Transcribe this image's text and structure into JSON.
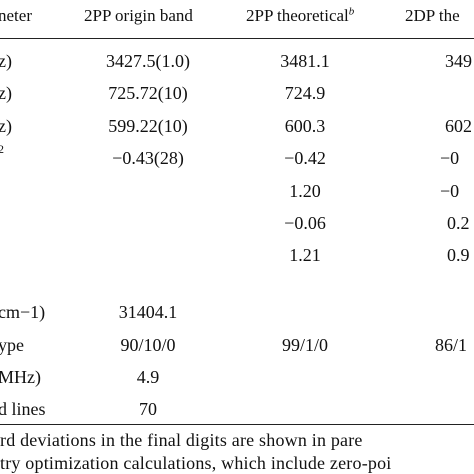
{
  "header": {
    "parameter_fragment": "neter",
    "col1": "2PP origin band",
    "col2": "2PP theoretical",
    "col2_sup": "b",
    "col3_fragment": "2DP the"
  },
  "rows": [
    {
      "label": "z)",
      "c1": "3427.5(1.0)",
      "c2": "3481.1",
      "c3": "349"
    },
    {
      "label": "z)",
      "c1": "725.72(10)",
      "c2": "724.9",
      "c3": ""
    },
    {
      "label": "z)",
      "c1": "599.22(10)",
      "c2": "600.3",
      "c3": "602"
    },
    {
      "label": "2",
      "c1": "−0.43(28)",
      "c2": "−0.42",
      "c3": "−0"
    },
    {
      "label": "",
      "c1": "",
      "c2": "1.20",
      "c3": "−0"
    },
    {
      "label": "",
      "c1": "",
      "c2": "−0.06",
      "c3": "0.2"
    },
    {
      "label": "",
      "c1": "",
      "c2": "1.21",
      "c3": "0.9"
    },
    {
      "label": "cm−1)",
      "c1": "31404.1",
      "c2": "",
      "c3": ""
    },
    {
      "label": "ype",
      "c1": "90/10/0",
      "c2": "99/1/0",
      "c3": "86/1"
    },
    {
      "label": "MHz)",
      "c1": "4.9",
      "c2": "",
      "c3": ""
    },
    {
      "label": "d lines",
      "c1": "70",
      "c2": "",
      "c3": ""
    }
  ],
  "footnotes": {
    "line1": "rd deviations in the final digits are shown in pare",
    "line2": "try optimization calculations, which include zero-poi"
  }
}
